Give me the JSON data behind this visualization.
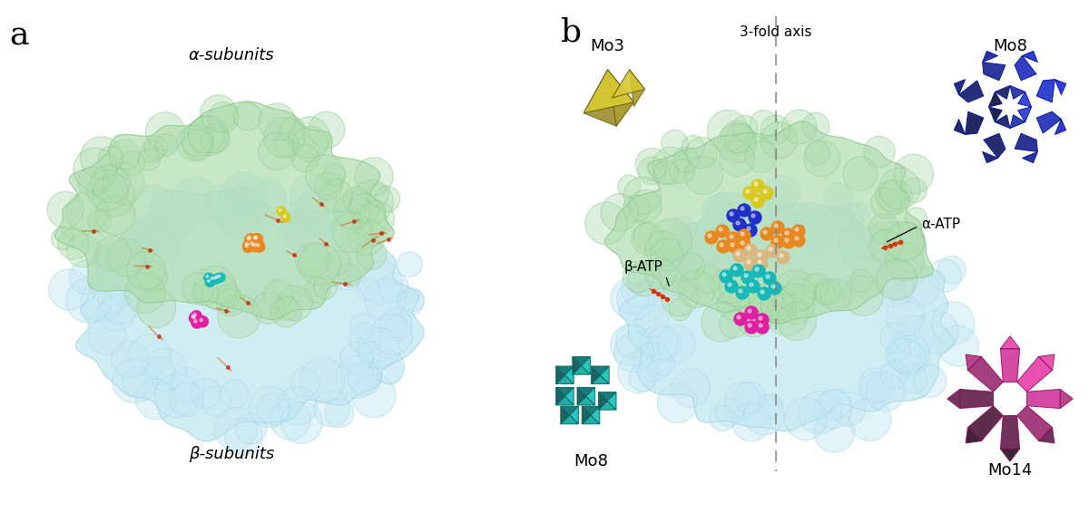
{
  "panel_a_label": "a",
  "panel_b_label": "b",
  "alpha_subunits_label": "α-subunits",
  "beta_subunits_label": "β-subunits",
  "fold_axis_label": "3-fold axis",
  "beta_atp_label": "β-ATP",
  "alpha_atp_label": "α-ATP",
  "mo3_label": "Mo3",
  "mo8_top_label": "Mo8",
  "mo8_bot_label": "Mo8",
  "mo14_label": "Mo14",
  "green_color": "#b0ddb0",
  "green_edge": "#70b870",
  "lightblue_color": "#c5e8f2",
  "lightblue_edge": "#88c8e0",
  "yellow_poly": "#d4c832",
  "yellow_dark": "#a09018",
  "blue_poly": "#2030cc",
  "blue_poly2": "#3848d8",
  "blue_poly3": "#6070e8",
  "teal_poly": "#18c8c0",
  "teal_dark": "#008880",
  "pink_poly": "#e838a8",
  "pink_poly2": "#f060c0",
  "pink_dark": "#a01870",
  "orange_color": "#e88820",
  "blue_sphere": "#2030c8",
  "yellow_sphere": "#d8c820",
  "teal_sphere": "#18b8b8",
  "magenta_sphere": "#e020a0",
  "wheat_sphere": "#d8b880",
  "background": "#ffffff"
}
